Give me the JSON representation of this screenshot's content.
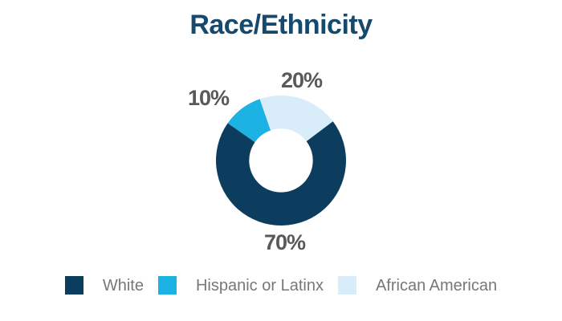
{
  "page": {
    "background": "#ffffff"
  },
  "chart_data": {
    "type": "pie",
    "donut": true,
    "title": "Race/Ethnicity",
    "title_color": "#15496e",
    "start_angle_deg": -55,
    "inner_radius_ratio": 0.49,
    "value_label_color": "#58595b",
    "slices": [
      {
        "label": "Hispanic or Latinx",
        "value": 10,
        "pct_label": "10%",
        "color": "#1cb2e4"
      },
      {
        "label": "African American",
        "value": 20,
        "pct_label": "20%",
        "color": "#d9ecf9"
      },
      {
        "label": "White",
        "value": 70,
        "pct_label": "70%",
        "color": "#0d3d5e"
      }
    ],
    "legend": {
      "position": "bottom",
      "text_color": "#76777a",
      "items": [
        {
          "label": "White",
          "color": "#0d3d5e"
        },
        {
          "label": "Hispanic or Latinx",
          "color": "#1cb2e4"
        },
        {
          "label": "African American",
          "color": "#d9ecf9"
        }
      ]
    }
  }
}
